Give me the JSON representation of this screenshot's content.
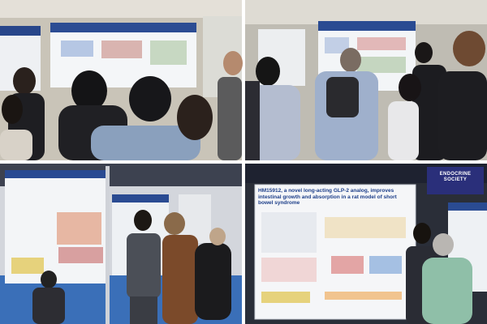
{
  "bottom_right_photo": {
    "poster_title": "HM15912, a novel long-acting GLP-2 analog, improves intestinal growth and absorption in a rat model of short bowel syndrome",
    "banner": "ENDOCRINE SOCIETY"
  }
}
